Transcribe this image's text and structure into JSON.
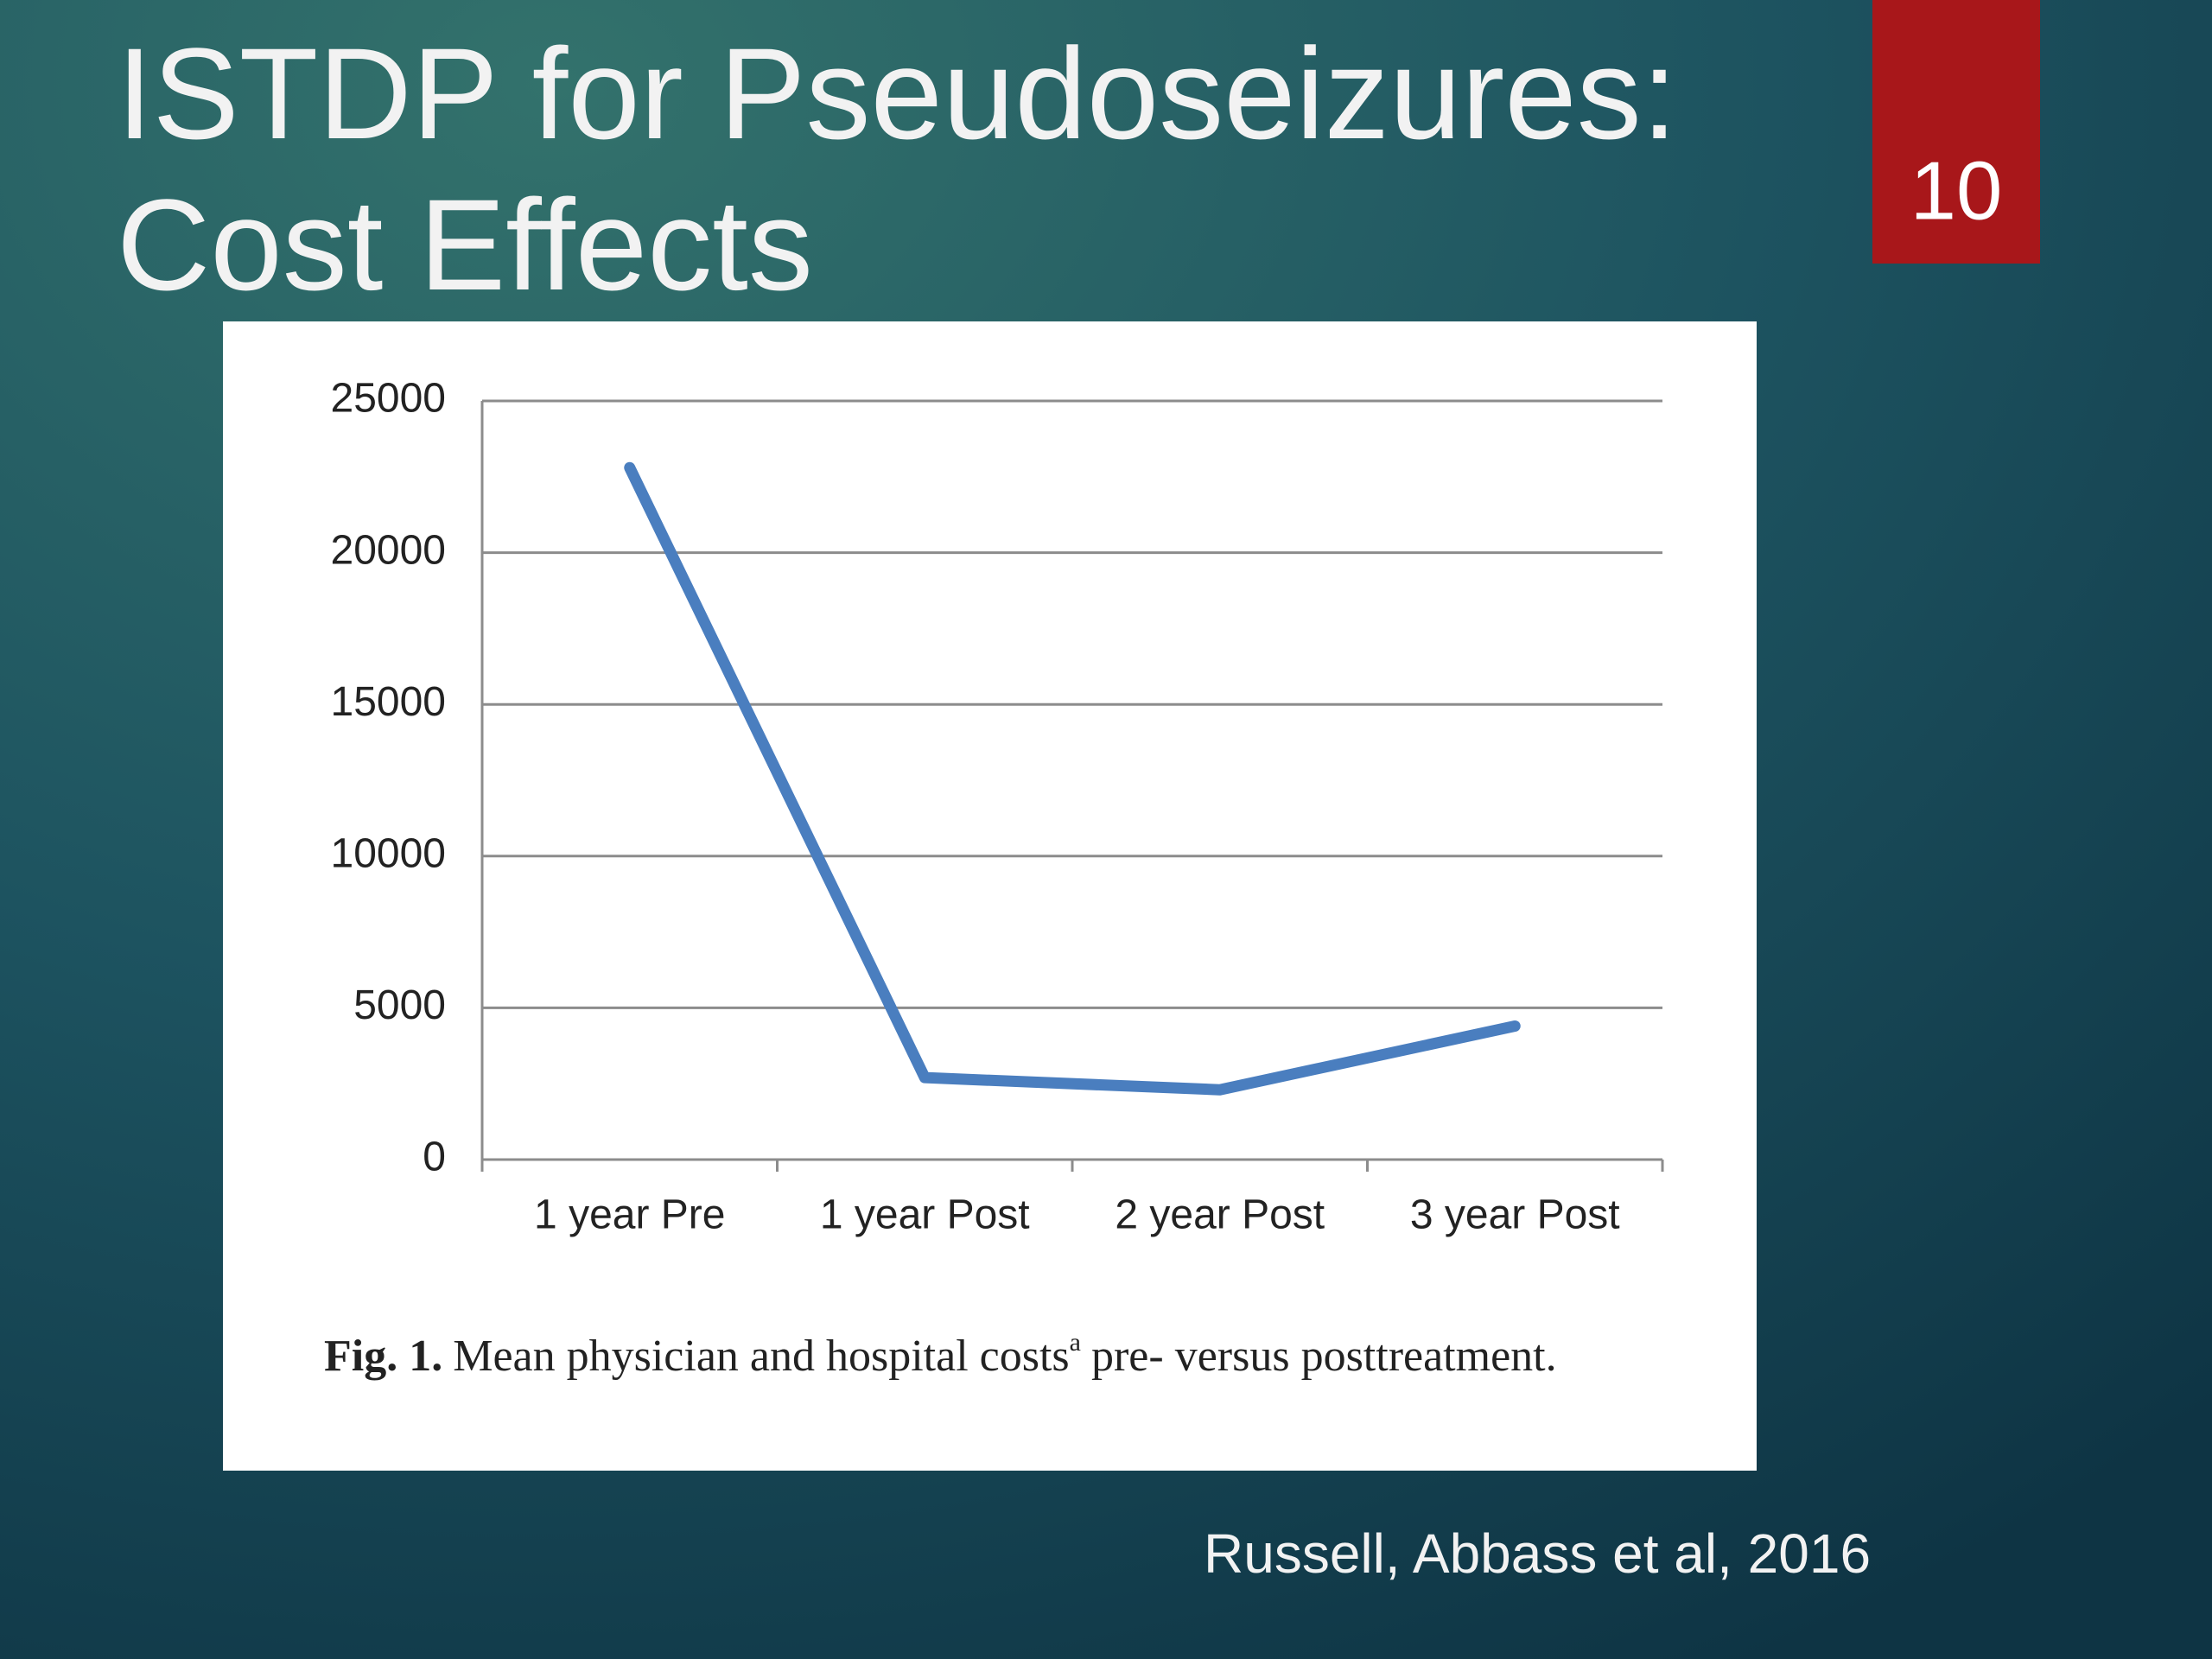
{
  "slide": {
    "title_lines": [
      "ISTDP for Pseudoseizures:",
      "Cost Effects"
    ],
    "slide_number": "10",
    "citation": "Russell, Abbass et al, 2016"
  },
  "chart_data": {
    "type": "line",
    "categories": [
      "1 year Pre",
      "1 year Post",
      "2 year Post",
      "3 year Post"
    ],
    "values": [
      22800,
      2700,
      2300,
      4400
    ],
    "color": "#4a7ebf",
    "ylim": [
      0,
      25000
    ],
    "yticks": [
      0,
      5000,
      10000,
      15000,
      20000,
      25000
    ],
    "grid": true,
    "caption": {
      "label": "Fig. 1.",
      "text": "Mean physician and hospital costs",
      "superscript": "a",
      "rest": "pre- versus posttreatment."
    }
  }
}
